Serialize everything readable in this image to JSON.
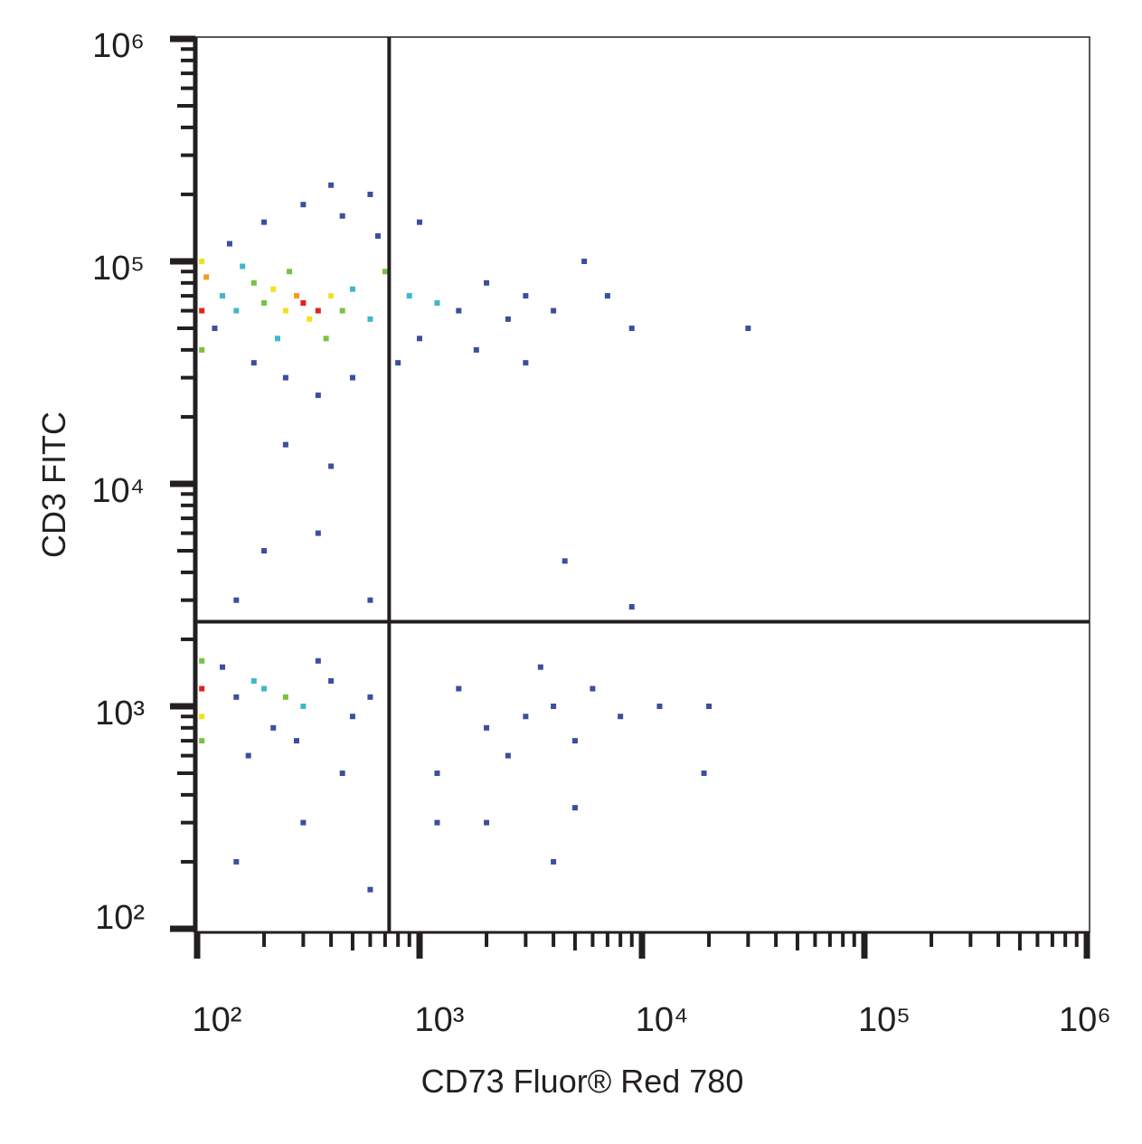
{
  "chart_data": {
    "type": "scatter",
    "x_label": "CD73 Fluor® Red 780",
    "y_label": "CD3 FITC",
    "xlog": true,
    "ylog": true,
    "xlim": [
      100,
      1000000
    ],
    "ylim": [
      100,
      1000000
    ],
    "xticks": [
      {
        "value": 100,
        "label": "10²"
      },
      {
        "value": 1000,
        "label": "10³"
      },
      {
        "value": 10000,
        "label": "10⁴"
      },
      {
        "value": 100000,
        "label": "10⁵"
      },
      {
        "value": 1000000,
        "label": "10⁶"
      }
    ],
    "yticks": [
      {
        "value": 100,
        "label": "10²"
      },
      {
        "value": 1000,
        "label": "10³"
      },
      {
        "value": 10000,
        "label": "10⁴"
      },
      {
        "value": 100000,
        "label": "10⁵"
      },
      {
        "value": 1000000,
        "label": "10⁶"
      }
    ],
    "gates": {
      "x": 730,
      "y": 2400
    },
    "x": [
      300,
      350,
      280,
      250,
      320,
      400,
      220,
      200,
      450,
      180,
      260,
      380,
      150,
      500,
      230,
      160,
      600,
      130,
      120,
      140,
      200,
      300,
      450,
      650,
      700,
      900,
      1200,
      1500,
      2000,
      2500,
      3000,
      4000,
      5500,
      7000,
      1000,
      800,
      500,
      250,
      350,
      180,
      1800,
      3000,
      9000,
      30000,
      600,
      1000,
      400,
      110,
      105,
      105,
      105,
      250,
      400,
      200,
      350,
      4500,
      600,
      9000,
      150,
      200,
      250,
      180,
      300,
      150,
      400,
      500,
      220,
      350,
      130,
      600,
      280,
      170,
      450,
      105,
      105,
      105,
      105,
      1500,
      2000,
      3000,
      4000,
      2500,
      5000,
      6000,
      3500,
      1200,
      8000,
      12000,
      20000,
      5000,
      2000,
      1200,
      4000,
      19000,
      300,
      150,
      600
    ],
    "y": [
      65000,
      60000,
      70000,
      60000,
      55000,
      70000,
      75000,
      65000,
      60000,
      80000,
      90000,
      45000,
      60000,
      75000,
      45000,
      95000,
      55000,
      70000,
      50000,
      120000,
      150000,
      180000,
      160000,
      130000,
      90000,
      70000,
      65000,
      60000,
      80000,
      55000,
      70000,
      60000,
      100000,
      70000,
      45000,
      35000,
      30000,
      30000,
      25000,
      35000,
      40000,
      35000,
      50000,
      50000,
      200000,
      150000,
      220000,
      85000,
      60000,
      100000,
      40000,
      15000,
      12000,
      5000,
      6000,
      4500,
      3000,
      2800,
      3000,
      1200,
      1100,
      1300,
      1000,
      1100,
      1300,
      900,
      800,
      1600,
      1500,
      1100,
      700,
      600,
      500,
      1200,
      900,
      1600,
      700,
      1200,
      800,
      900,
      1000,
      600,
      700,
      1200,
      1500,
      500,
      900,
      1000,
      1000,
      350,
      300,
      300,
      200,
      500,
      300,
      200,
      150
    ],
    "colors": [
      "#e2231a",
      "#e2231a",
      "#f39c1f",
      "#f2e21d",
      "#f2e21d",
      "#f2e21d",
      "#f2e21d",
      "#7ac143",
      "#7ac143",
      "#7ac143",
      "#7ac143",
      "#7ac143",
      "#3fb7c9",
      "#3fb7c9",
      "#3fb7c9",
      "#3fb7c9",
      "#3fb7c9",
      "#3fb7c9",
      "#3a4fa0",
      "#3a4fa0",
      "#3a4fa0",
      "#3a4fa0",
      "#3a4fa0",
      "#3a4fa0",
      "#7ac143",
      "#3fb7c9",
      "#3fb7c9",
      "#3a4fa0",
      "#3a4fa0",
      "#3a4fa0",
      "#3a4fa0",
      "#3a4fa0",
      "#3a4fa0",
      "#3a4fa0",
      "#3a4fa0",
      "#3a4fa0",
      "#3a4fa0",
      "#3a4fa0",
      "#3a4fa0",
      "#3a4fa0",
      "#3a4fa0",
      "#3a4fa0",
      "#3a4fa0",
      "#3a4fa0",
      "#3a4fa0",
      "#3a4fa0",
      "#3a4fa0",
      "#f39c1f",
      "#e2231a",
      "#f2e21d",
      "#7ac143",
      "#3a4fa0",
      "#3a4fa0",
      "#3a4fa0",
      "#3a4fa0",
      "#3a4fa0",
      "#3a4fa0",
      "#3a4fa0",
      "#3a4fa0",
      "#3fb7c9",
      "#7ac143",
      "#3fb7c9",
      "#3fb7c9",
      "#3a4fa0",
      "#3a4fa0",
      "#3a4fa0",
      "#3a4fa0",
      "#3a4fa0",
      "#3a4fa0",
      "#3a4fa0",
      "#3a4fa0",
      "#3a4fa0",
      "#3a4fa0",
      "#e2231a",
      "#f2e21d",
      "#7ac143",
      "#7ac143",
      "#3a4fa0",
      "#3a4fa0",
      "#3a4fa0",
      "#3a4fa0",
      "#3a4fa0",
      "#3a4fa0",
      "#3a4fa0",
      "#3a4fa0",
      "#3a4fa0",
      "#3a4fa0",
      "#3a4fa0",
      "#3a4fa0",
      "#3a4fa0",
      "#3a4fa0",
      "#3a4fa0",
      "#3a4fa0",
      "#3a4fa0",
      "#3a4fa0",
      "#3a4fa0",
      "#3a4fa0"
    ]
  }
}
